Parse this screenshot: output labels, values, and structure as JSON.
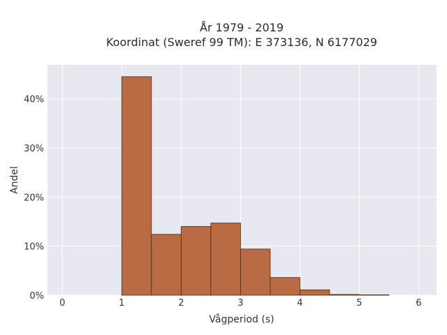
{
  "chart_data": {
    "type": "bar",
    "title_line1": "År 1979 - 2019",
    "title_line2": "Koordinat (Sweref 99 TM): E 373136, N 6177029",
    "xlabel": "Vågperiod (s)",
    "ylabel": "Andel",
    "xlim": [
      -0.25,
      6.3
    ],
    "ylim": [
      0,
      0.469
    ],
    "x_ticks": [
      0,
      1,
      2,
      3,
      4,
      5,
      6
    ],
    "y_ticks": [
      0,
      0.1,
      0.2,
      0.3,
      0.4
    ],
    "y_tick_labels": [
      "0%",
      "10%",
      "20%",
      "30%",
      "40%"
    ],
    "bins": [
      {
        "x0": 1.0,
        "x1": 1.5,
        "value": 0.445
      },
      {
        "x0": 1.5,
        "x1": 2.0,
        "value": 0.124
      },
      {
        "x0": 2.0,
        "x1": 2.5,
        "value": 0.14
      },
      {
        "x0": 2.5,
        "x1": 3.0,
        "value": 0.147
      },
      {
        "x0": 3.0,
        "x1": 3.5,
        "value": 0.094
      },
      {
        "x0": 3.5,
        "x1": 4.0,
        "value": 0.036
      },
      {
        "x0": 4.0,
        "x1": 4.5,
        "value": 0.011
      },
      {
        "x0": 4.5,
        "x1": 5.0,
        "value": 0.0015
      },
      {
        "x0": 5.0,
        "x1": 5.5,
        "value": 0.0008
      }
    ],
    "grid": true,
    "colors": {
      "bar_fill": "#b96b43",
      "bar_stroke": "#4a2a14",
      "plot_bg": "#e8e8f0",
      "grid": "#ffffff"
    }
  }
}
